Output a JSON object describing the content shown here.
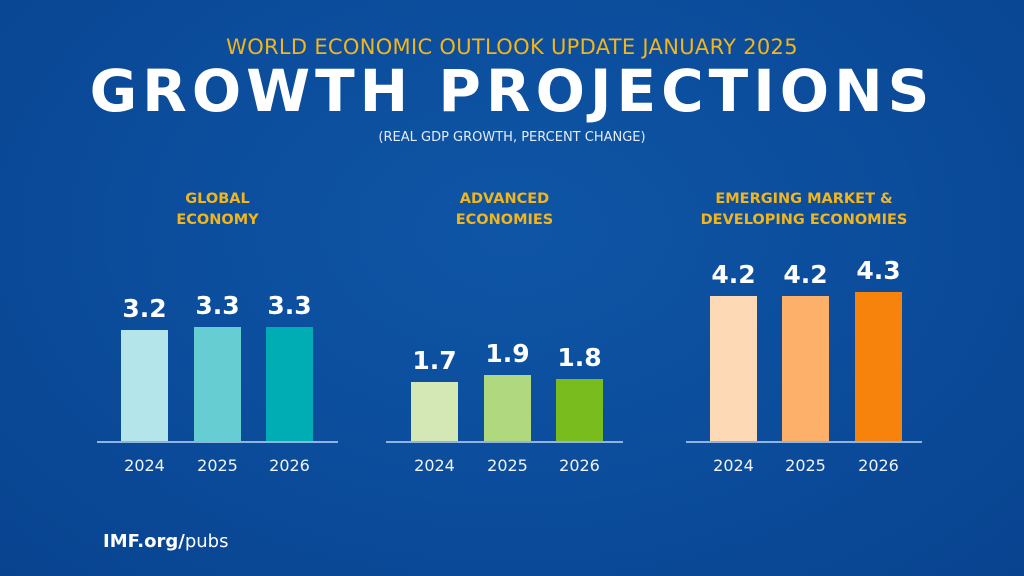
{
  "header": {
    "supertitle": "WORLD ECONOMIC OUTLOOK UPDATE JANUARY 2025",
    "title": "GROWTH PROJECTIONS",
    "subtitle": "(REAL GDP GROWTH, PERCENT CHANGE)"
  },
  "chart_data": [
    {
      "type": "bar",
      "title": "GLOBAL ECONOMY",
      "title_lines": [
        "GLOBAL",
        "ECONOMY"
      ],
      "categories": [
        "2024",
        "2025",
        "2026"
      ],
      "values": [
        3.2,
        3.3,
        3.3
      ],
      "value_labels": [
        "3.2",
        "3.3",
        "3.3"
      ],
      "colors": [
        "#b3e5ea",
        "#66cdd3",
        "#00adb5"
      ],
      "ylim": [
        0,
        4.5
      ]
    },
    {
      "type": "bar",
      "title": "ADVANCED ECONOMIES",
      "title_lines": [
        "ADVANCED",
        "ECONOMIES"
      ],
      "categories": [
        "2024",
        "2025",
        "2026"
      ],
      "values": [
        1.7,
        1.9,
        1.8
      ],
      "value_labels": [
        "1.7",
        "1.9",
        "1.8"
      ],
      "colors": [
        "#d4e8b5",
        "#b0d97f",
        "#78bc1e"
      ],
      "ylim": [
        0,
        4.5
      ]
    },
    {
      "type": "bar",
      "title": "EMERGING MARKET & DEVELOPING ECONOMIES",
      "title_lines": [
        "EMERGING MARKET &",
        "DEVELOPING ECONOMIES"
      ],
      "categories": [
        "2024",
        "2025",
        "2026"
      ],
      "values": [
        4.2,
        4.2,
        4.3
      ],
      "value_labels": [
        "4.2",
        "4.2",
        "4.3"
      ],
      "colors": [
        "#fdd9b5",
        "#fdb06a",
        "#f7830d"
      ],
      "ylim": [
        0,
        4.5
      ]
    }
  ],
  "footer": {
    "domain_bold": "IMF.org/",
    "domain_rest": "pubs"
  },
  "colors": {
    "background": "#0b4c9b",
    "accent": "#f2b51c"
  }
}
